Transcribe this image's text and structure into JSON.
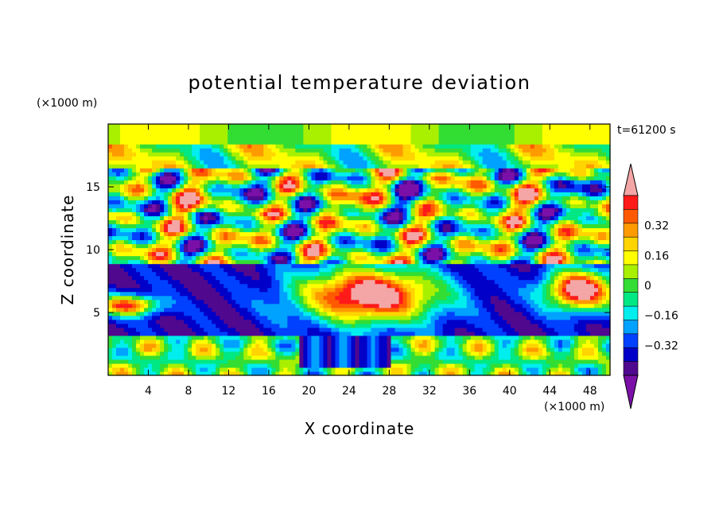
{
  "chart_data": {
    "type": "heatmap",
    "title": "potential temperature deviation",
    "xlabel": "X coordinate",
    "ylabel": "Z coordinate",
    "x_unit": "(×1000 m)",
    "y_unit": "(×1000 m)",
    "time_label": "t=61200 s",
    "xlim": [
      0,
      50
    ],
    "ylim": [
      0,
      20
    ],
    "x_ticks": [
      "4",
      "8",
      "12",
      "16",
      "20",
      "24",
      "28",
      "32",
      "36",
      "40",
      "44",
      "48"
    ],
    "x_tick_values": [
      4,
      8,
      12,
      16,
      20,
      24,
      28,
      32,
      36,
      40,
      44,
      48
    ],
    "y_ticks": [
      "5",
      "10",
      "15"
    ],
    "y_tick_values": [
      5,
      10,
      15
    ],
    "colorbar": {
      "levels": [
        -0.48,
        -0.4,
        -0.32,
        -0.24,
        -0.16,
        -0.08,
        0,
        0.08,
        0.16,
        0.24,
        0.32,
        0.4,
        0.48
      ],
      "tick_labels": [
        "0.32",
        "0.16",
        "0",
        "−0.16",
        "−0.32"
      ],
      "tick_values": [
        0.32,
        0.16,
        0,
        -0.16,
        -0.32
      ],
      "colors_top_to_bottom": [
        "#f4a6a6",
        "#ff1a1a",
        "#ff5a00",
        "#ff9a00",
        "#ffd400",
        "#ffff00",
        "#a8f000",
        "#33dd33",
        "#00e884",
        "#00eeee",
        "#00a2ff",
        "#0040ff",
        "#0000c8",
        "#50088f",
        "#7a10a8"
      ]
    }
  }
}
